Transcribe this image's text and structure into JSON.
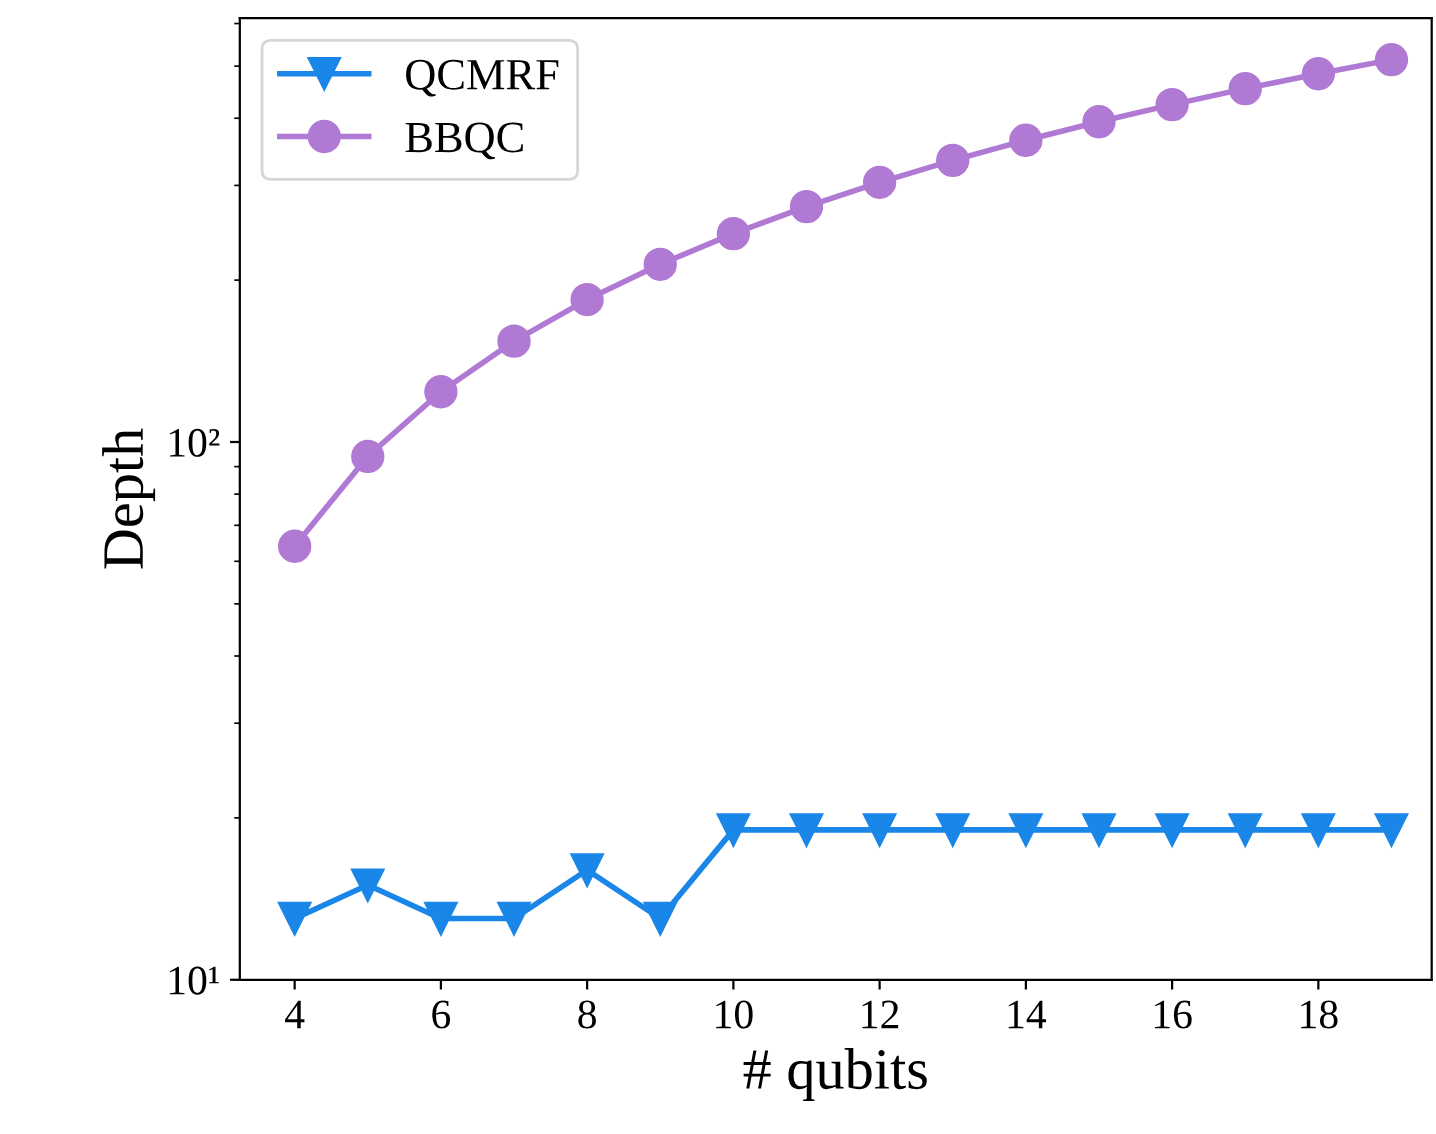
{
  "chart_data": {
    "type": "line",
    "xlabel": "# qubits",
    "ylabel": "Depth",
    "log": "y",
    "grid": false,
    "legend": "top left",
    "x": [
      4,
      5,
      6,
      7,
      8,
      9,
      10,
      11,
      12,
      13,
      14,
      15,
      16,
      17,
      18,
      19
    ],
    "xlim": [
      3.25,
      19.55
    ],
    "xticks": [
      4,
      6,
      8,
      10,
      12,
      14,
      16,
      18
    ],
    "ylim": [
      10,
      614
    ],
    "yticks": [
      {
        "value": 10,
        "label": "10¹"
      },
      {
        "value": 100,
        "label": "10²"
      }
    ],
    "series": [
      {
        "name": "QCMRF",
        "color": "#1a86e8",
        "marker": "triangle",
        "line_style": "solid",
        "values": [
          13,
          15,
          13,
          13,
          16,
          13,
          19,
          19,
          19,
          19,
          19,
          19,
          19,
          19,
          19,
          19
        ]
      },
      {
        "name": "BBQC",
        "color": "#b07ad4",
        "marker": "circle",
        "line_style": "solid",
        "values": [
          64,
          94,
          124,
          154,
          184,
          214,
          244,
          274,
          304,
          334,
          364,
          394,
          424,
          454,
          484,
          514
        ]
      }
    ]
  }
}
